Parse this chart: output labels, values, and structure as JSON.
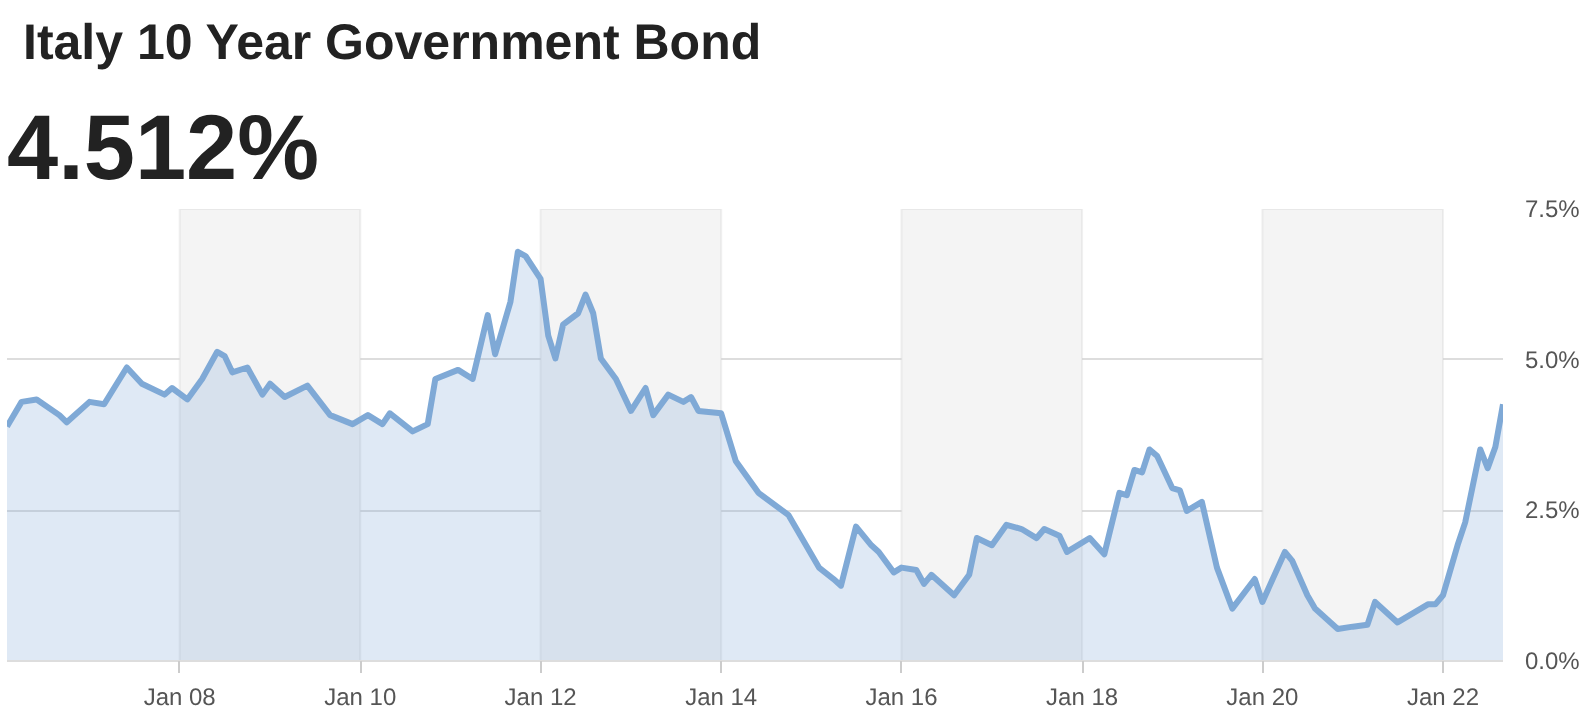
{
  "chart_data": {
    "type": "area",
    "title": "Italy 10 Year Government Bond",
    "subtitle": "4.512%",
    "x": [
      "2006-02",
      "2006-04",
      "2006-06",
      "2006-09",
      "2006-10",
      "2007-01",
      "2007-03",
      "2007-06",
      "2007-08",
      "2007-11",
      "2007-12",
      "2008-02",
      "2008-04",
      "2008-06",
      "2008-07",
      "2008-08",
      "2008-10",
      "2008-12",
      "2009-01",
      "2009-03",
      "2009-06",
      "2009-09",
      "2009-12",
      "2010-02",
      "2010-04",
      "2010-05",
      "2010-08",
      "2010-10",
      "2010-11",
      "2011-02",
      "2011-04",
      "2011-06",
      "2011-07",
      "2011-09",
      "2011-10",
      "2011-11",
      "2012-01",
      "2012-02",
      "2012-03",
      "2012-04",
      "2012-06",
      "2012-07",
      "2012-08",
      "2012-09",
      "2012-11",
      "2013-01",
      "2013-03",
      "2013-04",
      "2013-06",
      "2013-08",
      "2013-09",
      "2013-10",
      "2014-01",
      "2014-03",
      "2014-06",
      "2014-10",
      "2015-02",
      "2015-04",
      "2015-05",
      "2015-07",
      "2015-09",
      "2015-10",
      "2015-12",
      "2016-01",
      "2016-03",
      "2016-04",
      "2016-05",
      "2016-08",
      "2016-10",
      "2016-11",
      "2017-01",
      "2017-03",
      "2017-05",
      "2017-07",
      "2017-08",
      "2017-10",
      "2017-11",
      "2018-02",
      "2018-04",
      "2018-06",
      "2018-07",
      "2018-08",
      "2018-09",
      "2018-10",
      "2018-11",
      "2019-01",
      "2019-02",
      "2019-03",
      "2019-05",
      "2019-07",
      "2019-09",
      "2019-12",
      "2020-01",
      "2020-04",
      "2020-05",
      "2020-07",
      "2020-08",
      "2020-11",
      "2021-01",
      "2021-03",
      "2021-04",
      "2021-07",
      "2021-11",
      "2021-12",
      "2022-01",
      "2022-03",
      "2022-04",
      "2022-06",
      "2022-07",
      "2022-08",
      "2022-09"
    ],
    "series": [
      {
        "color": "#7fa9d6",
        "values": [
          3.89,
          4.3,
          4.34,
          4.08,
          3.96,
          4.3,
          4.26,
          4.87,
          4.6,
          4.42,
          4.53,
          4.34,
          4.68,
          5.13,
          5.06,
          4.79,
          4.87,
          4.42,
          4.6,
          4.38,
          4.57,
          4.08,
          3.93,
          4.08,
          3.93,
          4.11,
          3.81,
          3.93,
          4.68,
          4.83,
          4.68,
          5.74,
          5.09,
          5.96,
          6.79,
          6.72,
          6.34,
          5.4,
          5.02,
          5.58,
          5.77,
          6.08,
          5.77,
          5.02,
          4.68,
          4.15,
          4.53,
          4.08,
          4.42,
          4.3,
          4.38,
          4.15,
          4.11,
          3.32,
          2.79,
          2.42,
          1.55,
          1.36,
          1.25,
          2.23,
          1.92,
          1.81,
          1.47,
          1.55,
          1.51,
          1.28,
          1.43,
          1.09,
          1.43,
          2.04,
          1.92,
          2.26,
          2.19,
          2.04,
          2.19,
          2.08,
          1.81,
          2.04,
          1.77,
          2.79,
          2.75,
          3.17,
          3.13,
          3.51,
          3.4,
          2.87,
          2.83,
          2.49,
          2.64,
          1.55,
          0.87,
          1.36,
          0.98,
          1.81,
          1.66,
          1.09,
          0.87,
          0.53,
          0.57,
          0.6,
          0.98,
          0.64,
          0.94,
          0.94,
          1.09,
          1.92,
          2.3,
          3.51,
          3.2,
          3.55,
          4.26
        ]
      }
    ],
    "xlim": [
      "2006-02",
      "2022-09"
    ],
    "xticks": [
      {
        "value": "2008-01",
        "label": "Jan 08"
      },
      {
        "value": "2010-01",
        "label": "Jan 10"
      },
      {
        "value": "2012-01",
        "label": "Jan 12"
      },
      {
        "value": "2014-01",
        "label": "Jan 14"
      },
      {
        "value": "2016-01",
        "label": "Jan 16"
      },
      {
        "value": "2018-01",
        "label": "Jan 18"
      },
      {
        "value": "2020-01",
        "label": "Jan 20"
      },
      {
        "value": "2022-01",
        "label": "Jan 22"
      }
    ],
    "ylim": [
      0,
      7.5
    ],
    "yticks": [
      {
        "value": 0,
        "label": "0.0%"
      },
      {
        "value": 2.5,
        "label": "2.5%"
      },
      {
        "value": 5,
        "label": "5.0%"
      },
      {
        "value": 7.5,
        "label": "7.5%"
      }
    ],
    "grid": "y",
    "bands": [
      {
        "axis": "x",
        "from": "2008-01",
        "to": "2010-01",
        "color": "#f4f4f4"
      },
      {
        "axis": "x",
        "from": "2012-01",
        "to": "2014-01",
        "color": "#f4f4f4"
      },
      {
        "axis": "x",
        "from": "2016-01",
        "to": "2018-01",
        "color": "#f4f4f4"
      },
      {
        "axis": "x",
        "from": "2020-01",
        "to": "2022-01",
        "color": "#f4f4f4"
      }
    ]
  }
}
